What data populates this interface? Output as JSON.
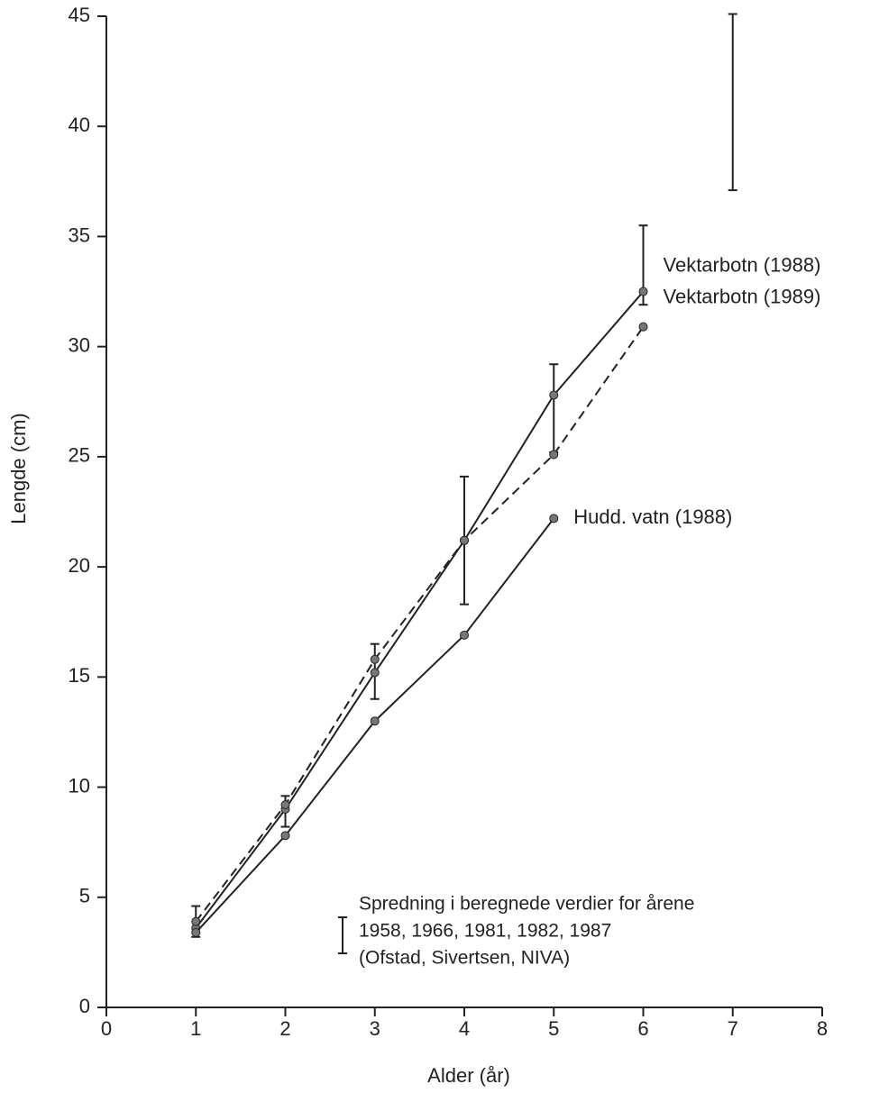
{
  "chart_data": {
    "type": "line",
    "x_label": "Alder (år)",
    "y_label": "Lengde (cm)",
    "xlim": [
      0,
      8
    ],
    "xticks": [
      0,
      1,
      2,
      3,
      4,
      5,
      6,
      7,
      8
    ],
    "ylim": [
      0,
      45
    ],
    "yticks": [
      0,
      5,
      10,
      15,
      20,
      25,
      30,
      35,
      40,
      45
    ],
    "series": [
      {
        "name": "Vektarbotn (1988)",
        "color": "#222222",
        "dash": false,
        "x": [
          1,
          2,
          3,
          4,
          5,
          6
        ],
        "values": [
          3.6,
          9.0,
          15.2,
          21.2,
          27.8,
          32.5
        ]
      },
      {
        "name": "Vektarbotn (1989)",
        "color": "#222222",
        "dash": true,
        "x": [
          1,
          2,
          3,
          4,
          5,
          6
        ],
        "values": [
          3.9,
          9.2,
          15.8,
          21.2,
          25.1,
          30.9
        ]
      },
      {
        "name": "Hudd. vatn (1988)",
        "color": "#222222",
        "dash": false,
        "x": [
          1,
          2,
          3,
          4,
          5
        ],
        "values": [
          3.4,
          7.8,
          13.0,
          16.9,
          22.2
        ]
      }
    ],
    "ranges": {
      "x": [
        1,
        2,
        3,
        4,
        5,
        6,
        7
      ],
      "low": [
        3.2,
        8.2,
        14.0,
        18.3,
        25.2,
        31.9,
        37.1
      ],
      "high": [
        4.6,
        9.6,
        16.5,
        24.1,
        29.2,
        35.5,
        45.1
      ]
    },
    "annotation": [
      "Spredning i beregnede verdier for årene",
      "1958, 1966, 1981, 1982, 1987",
      "(Ofstad, Sivertsen, NIVA)"
    ]
  }
}
